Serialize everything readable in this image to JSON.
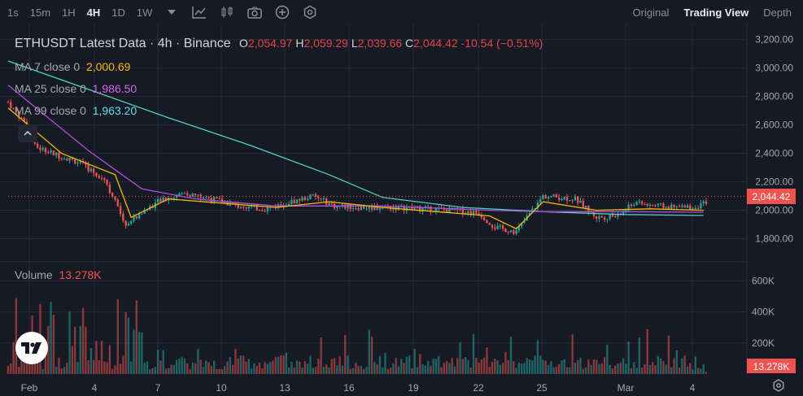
{
  "toolbar": {
    "timeframes": [
      "1s",
      "15m",
      "1H",
      "4H",
      "1D",
      "1W"
    ],
    "active_timeframe": "4H",
    "views": [
      "Original",
      "Trading View",
      "Depth"
    ],
    "active_view": "Trading View"
  },
  "legend": {
    "title": "ETHUSDT Latest Data · 4h · Binance",
    "open_label": "O",
    "open": "2,054.97",
    "high_label": "H",
    "high": "2,059.29",
    "low_label": "L",
    "low": "2,039.66",
    "close_label": "C",
    "close": "2,044.42",
    "change": "-10.54 (−0.51%)",
    "ma7_label": "MA 7 close 0",
    "ma7_value": "2,000.69",
    "ma25_label": "MA 25 close 0",
    "ma25_value": "1,986.50",
    "ma99_label": "MA 99 close 0",
    "ma99_value": "1,963.20",
    "volume_label": "Volume",
    "volume_value": "13.278K"
  },
  "colors": {
    "up": "#26a69a",
    "down": "#ef5350",
    "ma7": "#f0b90b",
    "ma25": "#b44fd6",
    "ma99": "#4fd1c5",
    "background": "#161a25",
    "grid": "#262b36"
  },
  "chart_data": {
    "type": "candlestick",
    "price_axis": {
      "ticks": [
        "3,200.00",
        "3,000.00",
        "2,800.00",
        "2,600.00",
        "2,400.00",
        "2,200.00",
        "2,000.00",
        "1,800.00"
      ],
      "tick_values": [
        3200,
        3000,
        2800,
        2600,
        2400,
        2200,
        2000,
        1800
      ],
      "range": [
        1660,
        3250
      ],
      "last_price": 2044.42,
      "last_price_label": "2,044.42"
    },
    "volume_axis": {
      "ticks": [
        "600K",
        "400K",
        "200K"
      ],
      "tick_values": [
        600000,
        400000,
        200000
      ],
      "range": [
        0,
        680000
      ],
      "last_volume_label": "13.278K"
    },
    "x_ticks": [
      "Feb",
      "4",
      "7",
      "10",
      "13",
      "16",
      "19",
      "22",
      "25",
      "Mar",
      "4"
    ],
    "price_anchors": [
      [
        0,
        2760
      ],
      [
        6,
        2620
      ],
      [
        10,
        2450
      ],
      [
        18,
        2390
      ],
      [
        26,
        2340
      ],
      [
        36,
        2220
      ],
      [
        44,
        1900
      ],
      [
        48,
        1960
      ],
      [
        56,
        2060
      ],
      [
        66,
        2120
      ],
      [
        76,
        2080
      ],
      [
        86,
        2030
      ],
      [
        96,
        2010
      ],
      [
        106,
        2060
      ],
      [
        114,
        2100
      ],
      [
        122,
        2030
      ],
      [
        132,
        2020
      ],
      [
        144,
        2020
      ],
      [
        156,
        2010
      ],
      [
        166,
        2000
      ],
      [
        176,
        1980
      ],
      [
        182,
        1880
      ],
      [
        190,
        1850
      ],
      [
        196,
        2000
      ],
      [
        200,
        2100
      ],
      [
        212,
        2080
      ],
      [
        220,
        1950
      ],
      [
        228,
        1960
      ],
      [
        234,
        2050
      ],
      [
        248,
        2020
      ],
      [
        256,
        2020
      ],
      [
        260,
        2044
      ]
    ],
    "ma7_points": [
      [
        0,
        2720
      ],
      [
        20,
        2400
      ],
      [
        40,
        2250
      ],
      [
        46,
        1950
      ],
      [
        60,
        2080
      ],
      [
        100,
        2020
      ],
      [
        120,
        2060
      ],
      [
        140,
        2020
      ],
      [
        180,
        1960
      ],
      [
        190,
        1870
      ],
      [
        200,
        2060
      ],
      [
        220,
        2000
      ],
      [
        240,
        2010
      ],
      [
        260,
        2000
      ]
    ],
    "ma25_points": [
      [
        0,
        2880
      ],
      [
        30,
        2420
      ],
      [
        50,
        2150
      ],
      [
        70,
        2080
      ],
      [
        100,
        2030
      ],
      [
        140,
        2030
      ],
      [
        180,
        2000
      ],
      [
        200,
        1990
      ],
      [
        230,
        1990
      ],
      [
        260,
        1986
      ]
    ],
    "ma99_points": [
      [
        0,
        3050
      ],
      [
        30,
        2850
      ],
      [
        60,
        2650
      ],
      [
        90,
        2460
      ],
      [
        120,
        2250
      ],
      [
        140,
        2090
      ],
      [
        170,
        2020
      ],
      [
        200,
        1990
      ],
      [
        230,
        1970
      ],
      [
        260,
        1963
      ]
    ]
  }
}
